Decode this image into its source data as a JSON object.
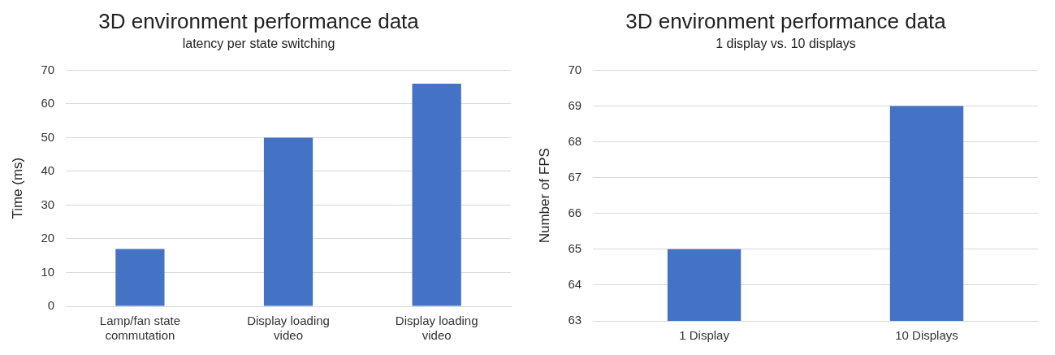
{
  "chart_data": [
    {
      "type": "bar",
      "title": "3D environment performance data",
      "subtitle": "latency per state switching",
      "ylabel": "Time (ms)",
      "categories": [
        "Lamp/fan state commutation",
        "Display loading video",
        "Display loading video"
      ],
      "values": [
        17,
        50,
        66
      ],
      "color": "#4472c4",
      "ylim": [
        0,
        70
      ],
      "yticks": [
        0,
        10,
        20,
        30,
        40,
        50,
        60,
        70
      ],
      "grid": "y",
      "legend": false
    },
    {
      "type": "bar",
      "title": "3D environment performance data",
      "subtitle": "1 display vs. 10 displays",
      "ylabel": "Number of FPS",
      "categories": [
        "1 Display",
        "10 Displays"
      ],
      "values": [
        65,
        69
      ],
      "color": "#4472c4",
      "ylim": [
        63,
        70
      ],
      "yticks": [
        63,
        64,
        65,
        66,
        67,
        68,
        69,
        70
      ],
      "grid": "y",
      "legend": false
    }
  ]
}
